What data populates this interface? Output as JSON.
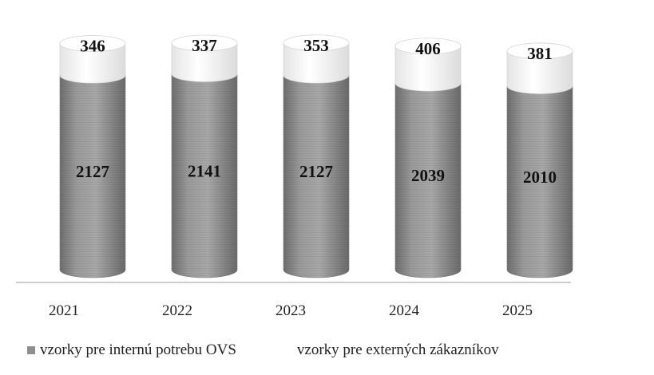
{
  "chart_data": {
    "type": "bar",
    "stacked": true,
    "style": "3d-cylinder",
    "categories": [
      "2021",
      "2022",
      "2023",
      "2024",
      "2025"
    ],
    "series": [
      {
        "name": "vzorky pre internú potrebu OVS",
        "values": [
          2127,
          2141,
          2127,
          2039,
          2010
        ],
        "color": "#8f8f8f"
      },
      {
        "name": "vzorky pre externých zákazníkov",
        "values": [
          346,
          337,
          353,
          406,
          381
        ],
        "color": "#f7f7f7"
      }
    ],
    "data_labels": true,
    "title": "",
    "xlabel": "",
    "ylabel": "",
    "ylim": [
      0,
      2600
    ],
    "grid": false,
    "legend_position": "bottom"
  }
}
